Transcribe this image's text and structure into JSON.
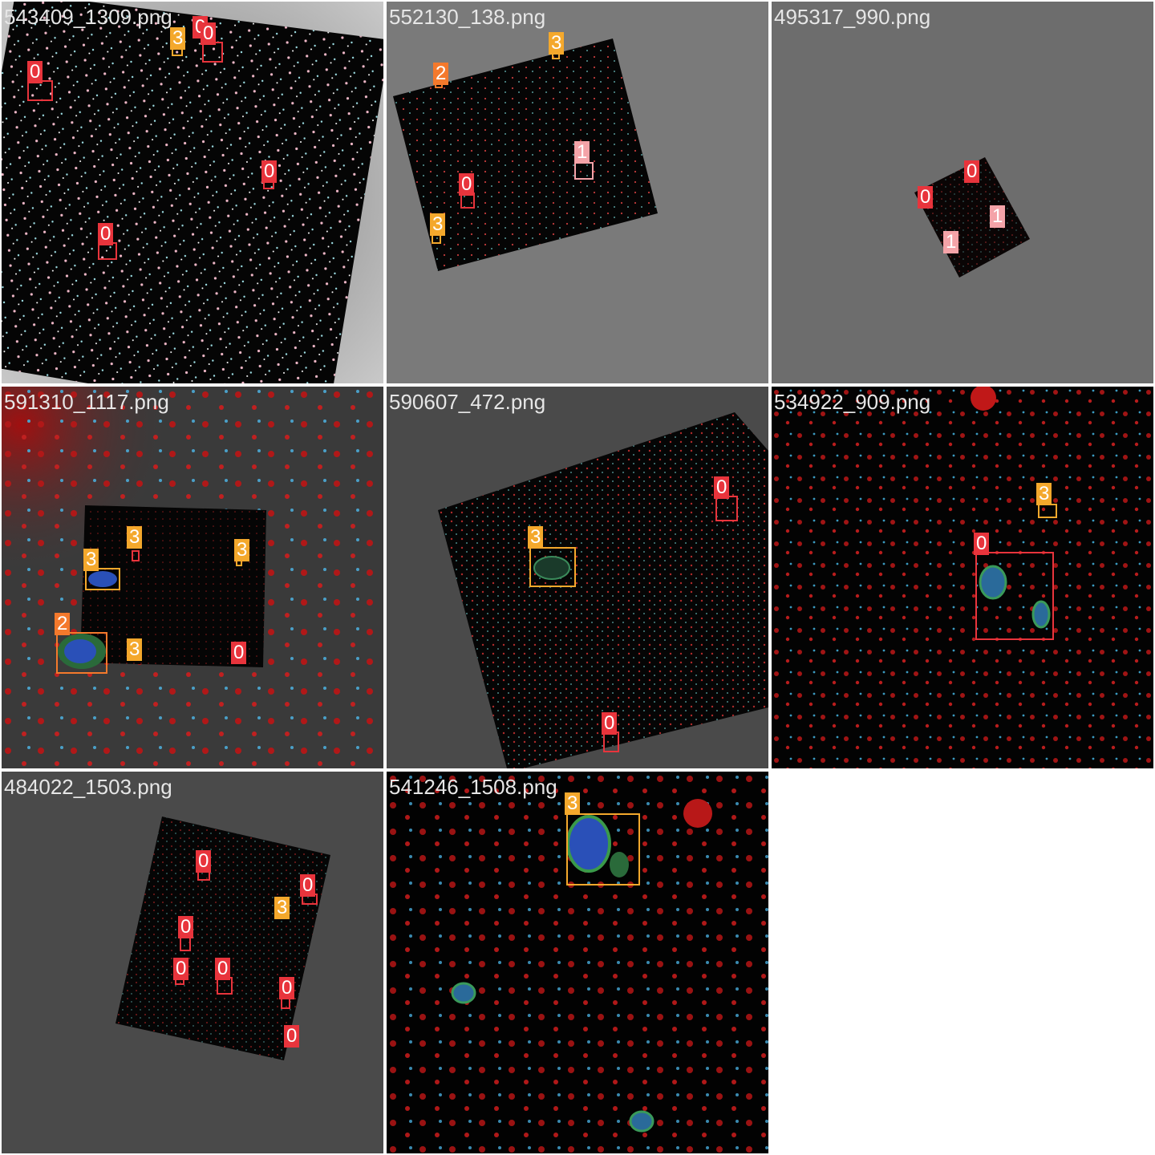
{
  "class_colors": {
    "0": "#e8343c",
    "1": "#f4a3a8",
    "2": "#f4792c",
    "3": "#f4a82c"
  },
  "tiles": [
    {
      "filename": "543409_1309.png",
      "labels": [
        "0",
        "3",
        "0",
        "0",
        "0",
        "0"
      ]
    },
    {
      "filename": "552130_138.png",
      "labels": [
        "2",
        "3",
        "1",
        "0",
        "3"
      ]
    },
    {
      "filename": "495317_990.png",
      "labels": [
        "0",
        "0",
        "1",
        "1"
      ]
    },
    {
      "filename": "591310_1117.png",
      "labels": [
        "3",
        "3",
        "3",
        "2",
        "3",
        "0"
      ]
    },
    {
      "filename": "590607_472.png",
      "labels": [
        "0",
        "3",
        "0"
      ]
    },
    {
      "filename": "534922_909.png",
      "labels": [
        "3",
        "0"
      ]
    },
    {
      "filename": "484022_1503.png",
      "labels": [
        "0",
        "0",
        "3",
        "0",
        "0",
        "0",
        "0",
        "0"
      ]
    },
    {
      "filename": "541246_1508.png",
      "labels": [
        "3"
      ]
    }
  ]
}
